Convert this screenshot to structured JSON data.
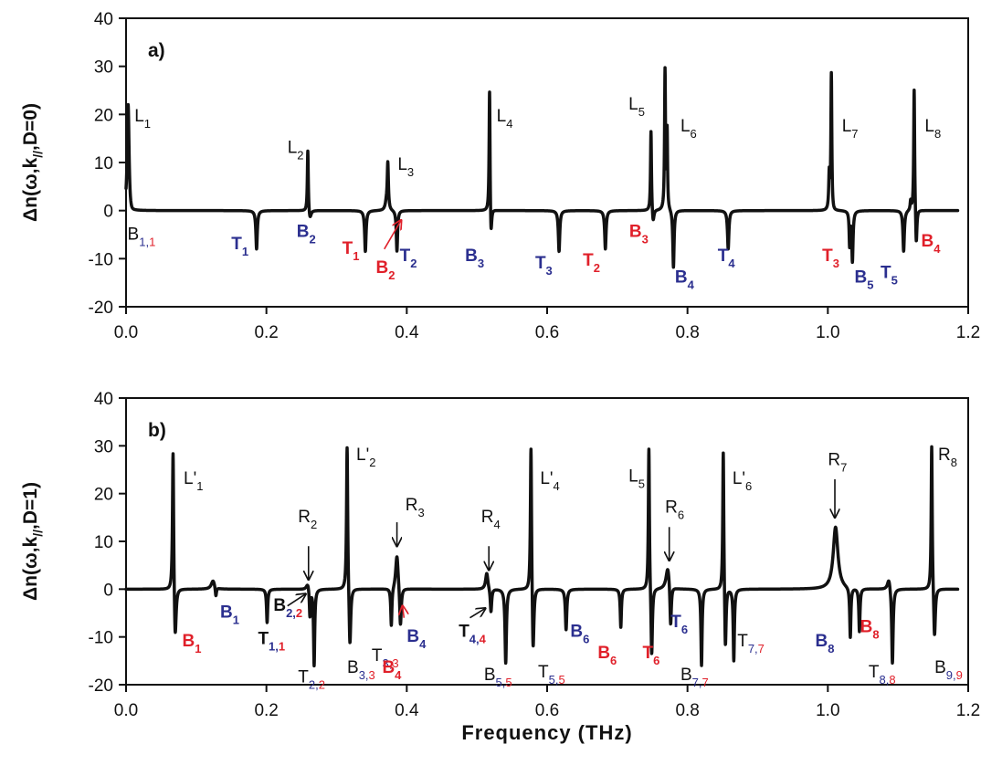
{
  "colors": {
    "black": "#111111",
    "red": "#e0202a",
    "blue": "#2b2f8f"
  },
  "xaxis": {
    "label": "Frequency (THz)",
    "ticks": [
      "0.0",
      "0.2",
      "0.4",
      "0.6",
      "0.8",
      "1.0",
      "1.2"
    ]
  },
  "chart_data": [
    {
      "type": "line",
      "panel_label": "a)",
      "ylabel": "Δn(ω,k//,D=0)",
      "ylabel_parts": [
        "Δn(ω,k",
        "//",
        ",D=0)"
      ],
      "xlim": [
        0,
        1.2
      ],
      "ylim": [
        -20,
        40
      ],
      "yticks": [
        "-20",
        "-10",
        "0",
        "10",
        "20",
        "30",
        "40"
      ],
      "x_range": [
        0.0,
        1.185
      ],
      "peaks": [
        {
          "x": 0.003,
          "y": 23,
          "w": 0.0016
        },
        {
          "x": 0.259,
          "y": 13,
          "w": 0.0008
        },
        {
          "x": 0.373,
          "y": 9.5,
          "w": 0.001
        },
        {
          "x": 0.518,
          "y": 26.5,
          "w": 0.0008
        },
        {
          "x": 0.748,
          "y": 17,
          "w": 0.0008
        },
        {
          "x": 0.768,
          "y": 29,
          "w": 0.0008
        },
        {
          "x": 0.771,
          "y": 16,
          "w": 0.0007
        },
        {
          "x": 1.002,
          "y": 7.5,
          "w": 0.0009
        },
        {
          "x": 1.005,
          "y": 29,
          "w": 0.0008
        },
        {
          "x": 1.118,
          "y": 2,
          "w": 0.0009
        },
        {
          "x": 1.123,
          "y": 26,
          "w": 0.0008
        },
        {
          "x": 0.371,
          "y": 1.5,
          "w": 0.002
        }
      ],
      "dips": [
        {
          "x": 0.006,
          "y": -1.5,
          "w": 0.004
        },
        {
          "x": 0.186,
          "y": -8,
          "w": 0.0012
        },
        {
          "x": 0.262,
          "y": -2,
          "w": 0.002
        },
        {
          "x": 0.341,
          "y": -8.5,
          "w": 0.0012
        },
        {
          "x": 0.386,
          "y": -8.5,
          "w": 0.0011
        },
        {
          "x": 0.52,
          "y": -7,
          "w": 0.0012
        },
        {
          "x": 0.617,
          "y": -8.5,
          "w": 0.0012
        },
        {
          "x": 0.683,
          "y": -8,
          "w": 0.0012
        },
        {
          "x": 0.751,
          "y": -3,
          "w": 0.0015
        },
        {
          "x": 0.78,
          "y": -12,
          "w": 0.0011
        },
        {
          "x": 0.858,
          "y": -8,
          "w": 0.0012
        },
        {
          "x": 1.006,
          "y": -1,
          "w": 0.003
        },
        {
          "x": 1.031,
          "y": -7,
          "w": 0.0008
        },
        {
          "x": 1.035,
          "y": -10.5,
          "w": 0.0011
        },
        {
          "x": 1.108,
          "y": -8.5,
          "w": 0.0012
        },
        {
          "x": 1.126,
          "y": -8,
          "w": 0.0011
        }
      ],
      "annotations": [
        {
          "main": "L",
          "sub": "1",
          "x": 0.012,
          "y": 18.5,
          "color": "black",
          "bold": false
        },
        {
          "main": "L",
          "sub": "2",
          "x": 0.23,
          "y": 12,
          "color": "black",
          "bold": false
        },
        {
          "main": "L",
          "sub": "3",
          "x": 0.387,
          "y": 8.5,
          "color": "black",
          "bold": false
        },
        {
          "main": "L",
          "sub": "4",
          "x": 0.528,
          "y": 18.5,
          "color": "black",
          "bold": false
        },
        {
          "main": "L",
          "sub": "5",
          "x": 0.716,
          "y": 21,
          "color": "black",
          "bold": false
        },
        {
          "main": "L",
          "sub": "6",
          "x": 0.79,
          "y": 16.5,
          "color": "black",
          "bold": false
        },
        {
          "main": "L",
          "sub": "7",
          "x": 1.02,
          "y": 16.5,
          "color": "black",
          "bold": false
        },
        {
          "main": "L",
          "sub": "8",
          "x": 1.138,
          "y": 16.5,
          "color": "black",
          "bold": false
        },
        {
          "main": "B",
          "sub": "1,",
          "sub2": "1",
          "x": 0.002,
          "y": -6,
          "color": "black",
          "subcolor": "blue",
          "sub2color": "red",
          "bold": false
        },
        {
          "main": "T",
          "sub": "1",
          "x": 0.15,
          "y": -8,
          "color": "blue",
          "bold": true
        },
        {
          "main": "B",
          "sub": "2",
          "x": 0.243,
          "y": -5.5,
          "color": "blue",
          "bold": true
        },
        {
          "main": "T",
          "sub": "1",
          "x": 0.308,
          "y": -9,
          "color": "red",
          "bold": true
        },
        {
          "main": "B",
          "sub": "2",
          "x": 0.356,
          "y": -13,
          "color": "red",
          "bold": true
        },
        {
          "main": "T",
          "sub": "2",
          "x": 0.39,
          "y": -10.5,
          "color": "blue",
          "bold": true
        },
        {
          "main": "B",
          "sub": "3",
          "x": 0.483,
          "y": -10.5,
          "color": "blue",
          "bold": true
        },
        {
          "main": "T",
          "sub": "3",
          "x": 0.583,
          "y": -12,
          "color": "blue",
          "bold": true
        },
        {
          "main": "T",
          "sub": "2",
          "x": 0.651,
          "y": -11.5,
          "color": "red",
          "bold": true
        },
        {
          "main": "B",
          "sub": "3",
          "x": 0.717,
          "y": -5.5,
          "color": "red",
          "bold": true
        },
        {
          "main": "B",
          "sub": "4",
          "x": 0.782,
          "y": -15,
          "color": "blue",
          "bold": true
        },
        {
          "main": "T",
          "sub": "4",
          "x": 0.843,
          "y": -10.5,
          "color": "blue",
          "bold": true
        },
        {
          "main": "T",
          "sub": "3",
          "x": 0.992,
          "y": -10.5,
          "color": "red",
          "bold": true
        },
        {
          "main": "B",
          "sub": "5",
          "x": 1.038,
          "y": -15,
          "color": "blue",
          "bold": true
        },
        {
          "main": "T",
          "sub": "5",
          "x": 1.075,
          "y": -14,
          "color": "blue",
          "bold": true
        },
        {
          "main": "B",
          "sub": "4",
          "x": 1.133,
          "y": -7.5,
          "color": "red",
          "bold": true
        }
      ],
      "arrows": [
        {
          "from": [
            0.368,
            -8
          ],
          "to": [
            0.392,
            -2
          ],
          "color": "red"
        }
      ]
    },
    {
      "type": "line",
      "panel_label": "b)",
      "ylabel": "Δn(ω,k//,D=1)",
      "ylabel_parts": [
        "Δn(ω,k",
        "//",
        ",D=1)"
      ],
      "xlim": [
        0,
        1.2
      ],
      "ylim": [
        -20,
        40
      ],
      "yticks": [
        "-20",
        "-10",
        "0",
        "10",
        "20",
        "30",
        "40"
      ],
      "x_range": [
        0.0,
        1.185
      ],
      "peaks": [
        {
          "x": 0.067,
          "y": 31,
          "w": 0.001
        },
        {
          "x": 0.124,
          "y": 1.8,
          "w": 0.003
        },
        {
          "x": 0.259,
          "y": 1.5,
          "w": 0.0025
        },
        {
          "x": 0.315,
          "y": 31,
          "w": 0.001
        },
        {
          "x": 0.386,
          "y": 7.5,
          "w": 0.0022
        },
        {
          "x": 0.514,
          "y": 3.5,
          "w": 0.002
        },
        {
          "x": 0.577,
          "y": 32,
          "w": 0.001
        },
        {
          "x": 0.745,
          "y": 30.5,
          "w": 0.0009
        },
        {
          "x": 0.772,
          "y": 4.8,
          "w": 0.003
        },
        {
          "x": 0.851,
          "y": 30.5,
          "w": 0.0009
        },
        {
          "x": 1.011,
          "y": 13,
          "w": 0.004
        },
        {
          "x": 1.087,
          "y": 2.5,
          "w": 0.0025
        },
        {
          "x": 1.148,
          "y": 31,
          "w": 0.0009
        }
      ],
      "dips": [
        {
          "x": 0.07,
          "y": -12,
          "w": 0.0016
        },
        {
          "x": 0.128,
          "y": -2,
          "w": 0.001
        },
        {
          "x": 0.201,
          "y": -7,
          "w": 0.001
        },
        {
          "x": 0.262,
          "y": -6,
          "w": 0.001
        },
        {
          "x": 0.268,
          "y": -16,
          "w": 0.001
        },
        {
          "x": 0.319,
          "y": -13,
          "w": 0.0014
        },
        {
          "x": 0.378,
          "y": -8,
          "w": 0.001
        },
        {
          "x": 0.391,
          "y": -8.5,
          "w": 0.0014
        },
        {
          "x": 0.52,
          "y": -5,
          "w": 0.0012
        },
        {
          "x": 0.541,
          "y": -15.5,
          "w": 0.0012
        },
        {
          "x": 0.58,
          "y": -15,
          "w": 0.0014
        },
        {
          "x": 0.627,
          "y": -8.5,
          "w": 0.0012
        },
        {
          "x": 0.705,
          "y": -8,
          "w": 0.001
        },
        {
          "x": 0.749,
          "y": -15,
          "w": 0.0012
        },
        {
          "x": 0.776,
          "y": -9,
          "w": 0.0012
        },
        {
          "x": 0.82,
          "y": -16,
          "w": 0.001
        },
        {
          "x": 0.854,
          "y": -14,
          "w": 0.0012
        },
        {
          "x": 0.866,
          "y": -15,
          "w": 0.001
        },
        {
          "x": 1.032,
          "y": -10.5,
          "w": 0.001
        },
        {
          "x": 1.045,
          "y": -9,
          "w": 0.001
        },
        {
          "x": 1.092,
          "y": -16,
          "w": 0.0012
        },
        {
          "x": 1.152,
          "y": -11,
          "w": 0.0014
        }
      ],
      "annotations": [
        {
          "main": "L'",
          "sub": "1",
          "x": 0.082,
          "y": 22,
          "color": "black",
          "bold": false
        },
        {
          "main": "L'",
          "sub": "2",
          "x": 0.328,
          "y": 27,
          "color": "black",
          "bold": false
        },
        {
          "main": "L'",
          "sub": "4",
          "x": 0.59,
          "y": 22,
          "color": "black",
          "bold": false
        },
        {
          "main": "L",
          "sub": "5",
          "x": 0.716,
          "y": 22.5,
          "color": "black",
          "bold": false
        },
        {
          "main": "L'",
          "sub": "6",
          "x": 0.864,
          "y": 22,
          "color": "black",
          "bold": false
        },
        {
          "main": "R",
          "sub": "2",
          "x": 0.245,
          "y": 14,
          "color": "black",
          "bold": false
        },
        {
          "main": "R",
          "sub": "3",
          "x": 0.398,
          "y": 16.5,
          "color": "black",
          "bold": false
        },
        {
          "main": "R",
          "sub": "4",
          "x": 0.506,
          "y": 14,
          "color": "black",
          "bold": false
        },
        {
          "main": "R",
          "sub": "6",
          "x": 0.768,
          "y": 16,
          "color": "black",
          "bold": false
        },
        {
          "main": "R",
          "sub": "7",
          "x": 1.0,
          "y": 26,
          "color": "black",
          "bold": false
        },
        {
          "main": "R",
          "sub": "8",
          "x": 1.157,
          "y": 27,
          "color": "black",
          "bold": false
        },
        {
          "main": "B",
          "sub": "1",
          "x": 0.08,
          "y": -12,
          "color": "red",
          "bold": true
        },
        {
          "main": "B",
          "sub": "1",
          "x": 0.134,
          "y": -6,
          "color": "blue",
          "bold": true
        },
        {
          "main": "B",
          "sub": "2,",
          "sub2": "2",
          "x": 0.21,
          "y": -4.5,
          "color": "black",
          "subcolor": "blue",
          "sub2color": "red",
          "bold": true
        },
        {
          "main": "T",
          "sub": "1,",
          "sub2": "1",
          "x": 0.188,
          "y": -11.5,
          "color": "black",
          "subcolor": "blue",
          "sub2color": "red",
          "bold": true
        },
        {
          "main": "T",
          "sub": "2,",
          "sub2": "2",
          "x": 0.245,
          "y": -19.5,
          "color": "black",
          "subcolor": "blue",
          "sub2color": "red",
          "bold": false
        },
        {
          "main": "B",
          "sub": "3,",
          "sub2": "3",
          "x": 0.315,
          "y": -17.5,
          "color": "black",
          "subcolor": "blue",
          "sub2color": "red",
          "bold": false
        },
        {
          "main": "T",
          "sub": "3,",
          "sub2": "3",
          "x": 0.35,
          "y": -15,
          "color": "black",
          "subcolor": "blue",
          "sub2color": "red",
          "bold": false
        },
        {
          "main": "B",
          "sub": "4",
          "x": 0.4,
          "y": -11,
          "color": "blue",
          "bold": true
        },
        {
          "main": "B",
          "sub": "4",
          "x": 0.365,
          "y": -17.5,
          "color": "red",
          "bold": true
        },
        {
          "main": "T",
          "sub": "4,",
          "sub2": "4",
          "x": 0.474,
          "y": -10,
          "color": "black",
          "subcolor": "blue",
          "sub2color": "red",
          "bold": true
        },
        {
          "main": "B",
          "sub": "5,",
          "sub2": "5",
          "x": 0.51,
          "y": -19,
          "color": "black",
          "subcolor": "blue",
          "sub2color": "red",
          "bold": false
        },
        {
          "main": "T",
          "sub": "5,",
          "sub2": "5",
          "x": 0.587,
          "y": -18.5,
          "color": "black",
          "subcolor": "blue",
          "sub2color": "red",
          "bold": false
        },
        {
          "main": "B",
          "sub": "6",
          "x": 0.633,
          "y": -10,
          "color": "blue",
          "bold": true
        },
        {
          "main": "B",
          "sub": "6",
          "x": 0.672,
          "y": -14.5,
          "color": "red",
          "bold": true
        },
        {
          "main": "T",
          "sub": "6",
          "x": 0.736,
          "y": -14.5,
          "color": "red",
          "bold": true
        },
        {
          "main": "T",
          "sub": "6",
          "x": 0.776,
          "y": -8,
          "color": "blue",
          "bold": true
        },
        {
          "main": "B",
          "sub": "7,",
          "sub2": "7",
          "x": 0.79,
          "y": -19,
          "color": "black",
          "subcolor": "blue",
          "sub2color": "red",
          "bold": false
        },
        {
          "main": "T",
          "sub": "7,",
          "sub2": "7",
          "x": 0.871,
          "y": -12,
          "color": "black",
          "subcolor": "blue",
          "sub2color": "red",
          "bold": false
        },
        {
          "main": "B",
          "sub": "8",
          "x": 0.982,
          "y": -12,
          "color": "blue",
          "bold": true
        },
        {
          "main": "B",
          "sub": "8",
          "x": 1.046,
          "y": -9,
          "color": "red",
          "bold": true
        },
        {
          "main": "T",
          "sub": "8,",
          "sub2": "8",
          "x": 1.058,
          "y": -18.5,
          "color": "black",
          "subcolor": "blue",
          "sub2color": "red",
          "bold": false
        },
        {
          "main": "B",
          "sub": "9,",
          "sub2": "9",
          "x": 1.152,
          "y": -17.5,
          "color": "black",
          "subcolor": "blue",
          "sub2color": "red",
          "bold": false
        }
      ],
      "arrows": [
        {
          "from": [
            0.26,
            9
          ],
          "to": [
            0.26,
            2
          ],
          "color": "black"
        },
        {
          "from": [
            0.23,
            -3.5
          ],
          "to": [
            0.256,
            -1
          ],
          "color": "black"
        },
        {
          "from": [
            0.386,
            14
          ],
          "to": [
            0.386,
            9
          ],
          "color": "black"
        },
        {
          "from": [
            0.517,
            9
          ],
          "to": [
            0.517,
            4
          ],
          "color": "black"
        },
        {
          "from": [
            0.49,
            -6
          ],
          "to": [
            0.512,
            -4
          ],
          "color": "black"
        },
        {
          "from": [
            0.396,
            -6
          ],
          "to": [
            0.394,
            -3.5
          ],
          "color": "red"
        },
        {
          "from": [
            0.774,
            13
          ],
          "to": [
            0.774,
            6
          ],
          "color": "black"
        },
        {
          "from": [
            1.01,
            23
          ],
          "to": [
            1.01,
            15
          ],
          "color": "black"
        }
      ]
    }
  ]
}
